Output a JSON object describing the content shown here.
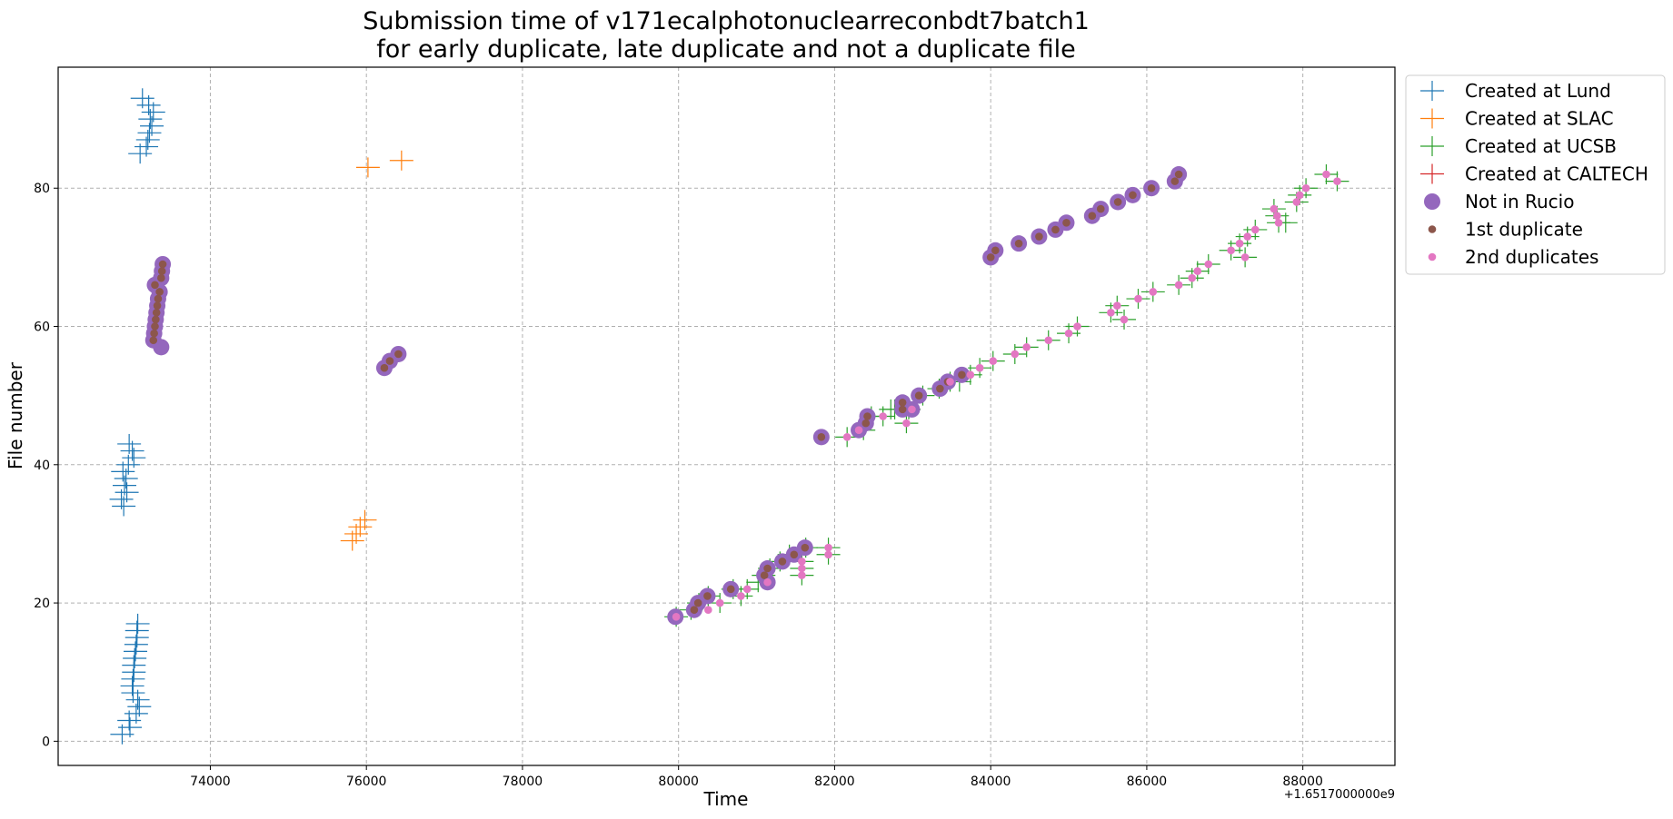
{
  "chart_data": {
    "type": "scatter",
    "title_line1": "Submission time of v171ecalphotonuclearreconbdt7batch1",
    "title_line2": "for early duplicate, late duplicate and not a duplicate file",
    "xlabel": "Time",
    "ylabel": "File number",
    "x_offset_label": "+1.6517000000e9",
    "xlim": [
      72050,
      89180
    ],
    "ylim": [
      -3.5,
      97.5
    ],
    "xticks": [
      74000,
      76000,
      78000,
      80000,
      82000,
      84000,
      86000,
      88000
    ],
    "yticks": [
      0,
      20,
      40,
      60,
      80
    ],
    "grid": true,
    "legend_position": "outside-right-top",
    "series": [
      {
        "name": "Created at Lund",
        "marker": "plus",
        "color": "#1f77b4",
        "points": [
          [
            73130,
            93
          ],
          [
            73210,
            92
          ],
          [
            73270,
            91
          ],
          [
            73230,
            90
          ],
          [
            73250,
            89
          ],
          [
            73220,
            88
          ],
          [
            73200,
            87
          ],
          [
            73180,
            86
          ],
          [
            73100,
            85
          ],
          [
            72960,
            43
          ],
          [
            73000,
            42
          ],
          [
            73020,
            41
          ],
          [
            72950,
            40
          ],
          [
            72880,
            39
          ],
          [
            72920,
            38
          ],
          [
            72900,
            37
          ],
          [
            72930,
            36
          ],
          [
            72860,
            35
          ],
          [
            72890,
            34
          ],
          [
            73070,
            17
          ],
          [
            73060,
            16
          ],
          [
            73060,
            15
          ],
          [
            73050,
            14
          ],
          [
            73040,
            13
          ],
          [
            73030,
            12
          ],
          [
            73020,
            11
          ],
          [
            73020,
            10
          ],
          [
            73010,
            9
          ],
          [
            73000,
            8
          ],
          [
            73010,
            7
          ],
          [
            73070,
            6
          ],
          [
            73090,
            5
          ],
          [
            73050,
            4
          ],
          [
            72960,
            3
          ],
          [
            72970,
            2
          ],
          [
            72870,
            1
          ]
        ]
      },
      {
        "name": "Created at SLAC",
        "marker": "plus",
        "color": "#ff7f0e",
        "points": [
          [
            76020,
            83
          ],
          [
            76450,
            84
          ],
          [
            75820,
            29
          ],
          [
            75870,
            30
          ],
          [
            75920,
            31
          ],
          [
            75980,
            32
          ]
        ]
      },
      {
        "name": "Created at UCSB",
        "marker": "plus",
        "color": "#2ca02c",
        "points": [
          [
            79970,
            18
          ],
          [
            80160,
            19
          ],
          [
            80260,
            20
          ],
          [
            80380,
            21
          ],
          [
            80530,
            20
          ],
          [
            80700,
            22
          ],
          [
            80800,
            21
          ],
          [
            80880,
            22
          ],
          [
            81020,
            23
          ],
          [
            81090,
            24
          ],
          [
            81170,
            25
          ],
          [
            81300,
            26
          ],
          [
            81420,
            27
          ],
          [
            81580,
            24
          ],
          [
            81580,
            25
          ],
          [
            81580,
            26
          ],
          [
            81630,
            28
          ],
          [
            81920,
            27
          ],
          [
            81920,
            28
          ],
          [
            82160,
            44
          ],
          [
            82370,
            45
          ],
          [
            82470,
            47
          ],
          [
            82620,
            47
          ],
          [
            82720,
            48
          ],
          [
            82770,
            48
          ],
          [
            82920,
            46
          ],
          [
            82950,
            48
          ],
          [
            83130,
            50
          ],
          [
            83340,
            51
          ],
          [
            83480,
            52
          ],
          [
            83600,
            52
          ],
          [
            83740,
            53
          ],
          [
            83860,
            54
          ],
          [
            84030,
            55
          ],
          [
            84310,
            56
          ],
          [
            84460,
            57
          ],
          [
            84740,
            58
          ],
          [
            85000,
            59
          ],
          [
            85110,
            60
          ],
          [
            85540,
            62
          ],
          [
            85620,
            63
          ],
          [
            85710,
            61
          ],
          [
            85890,
            64
          ],
          [
            86080,
            65
          ],
          [
            86410,
            66
          ],
          [
            86580,
            67
          ],
          [
            86650,
            68
          ],
          [
            86790,
            69
          ],
          [
            87080,
            71
          ],
          [
            87190,
            72
          ],
          [
            87260,
            70
          ],
          [
            87290,
            73
          ],
          [
            87390,
            74
          ],
          [
            87630,
            77
          ],
          [
            87670,
            76
          ],
          [
            87690,
            75
          ],
          [
            87780,
            75
          ],
          [
            87920,
            78
          ],
          [
            87960,
            79
          ],
          [
            88040,
            80
          ],
          [
            88300,
            82
          ],
          [
            88440,
            81
          ]
        ]
      },
      {
        "name": "Created at CALTECH",
        "marker": "plus",
        "color": "#d62728",
        "points": []
      },
      {
        "name": "Not in Rucio",
        "marker": "circle-large",
        "color": "#9467bd",
        "points": [
          [
            73290,
            66
          ],
          [
            73390,
            69
          ],
          [
            73380,
            68
          ],
          [
            73370,
            67
          ],
          [
            73350,
            65
          ],
          [
            73330,
            64
          ],
          [
            73320,
            63
          ],
          [
            73310,
            62
          ],
          [
            73300,
            61
          ],
          [
            73290,
            60
          ],
          [
            73280,
            59
          ],
          [
            73270,
            58
          ],
          [
            73370,
            57
          ],
          [
            76230,
            54
          ],
          [
            76300,
            55
          ],
          [
            76410,
            56
          ],
          [
            79960,
            18
          ],
          [
            80200,
            19
          ],
          [
            80250,
            20
          ],
          [
            80370,
            21
          ],
          [
            80670,
            22
          ],
          [
            81140,
            25
          ],
          [
            81100,
            24
          ],
          [
            81140,
            23
          ],
          [
            81330,
            26
          ],
          [
            81480,
            27
          ],
          [
            81620,
            28
          ],
          [
            81830,
            44
          ],
          [
            82310,
            45
          ],
          [
            82420,
            47
          ],
          [
            82400,
            46
          ],
          [
            82870,
            48
          ],
          [
            82870,
            49
          ],
          [
            82990,
            48
          ],
          [
            83080,
            50
          ],
          [
            83350,
            51
          ],
          [
            83450,
            52
          ],
          [
            83630,
            53
          ],
          [
            84000,
            70
          ],
          [
            84060,
            71
          ],
          [
            84360,
            72
          ],
          [
            84620,
            73
          ],
          [
            84830,
            74
          ],
          [
            84970,
            75
          ],
          [
            85300,
            76
          ],
          [
            85410,
            77
          ],
          [
            85630,
            78
          ],
          [
            85820,
            79
          ],
          [
            86060,
            80
          ],
          [
            86360,
            81
          ],
          [
            86410,
            82
          ]
        ]
      },
      {
        "name": "1st duplicate",
        "marker": "circle-small",
        "color": "#8c564b",
        "points": [
          [
            73290,
            66
          ],
          [
            73390,
            69
          ],
          [
            73380,
            68
          ],
          [
            73370,
            67
          ],
          [
            73350,
            65
          ],
          [
            73330,
            64
          ],
          [
            73320,
            63
          ],
          [
            73310,
            62
          ],
          [
            73300,
            61
          ],
          [
            73290,
            60
          ],
          [
            73280,
            59
          ],
          [
            73270,
            58
          ],
          [
            76230,
            54
          ],
          [
            76300,
            55
          ],
          [
            76410,
            56
          ],
          [
            80200,
            19
          ],
          [
            80250,
            20
          ],
          [
            80370,
            21
          ],
          [
            80670,
            22
          ],
          [
            81140,
            25
          ],
          [
            81100,
            24
          ],
          [
            81330,
            26
          ],
          [
            81480,
            27
          ],
          [
            81620,
            28
          ],
          [
            81830,
            44
          ],
          [
            82420,
            47
          ],
          [
            82400,
            46
          ],
          [
            82870,
            48
          ],
          [
            82870,
            49
          ],
          [
            83080,
            50
          ],
          [
            83350,
            51
          ],
          [
            83450,
            52
          ],
          [
            83630,
            53
          ],
          [
            84000,
            70
          ],
          [
            84060,
            71
          ],
          [
            84360,
            72
          ],
          [
            84620,
            73
          ],
          [
            84830,
            74
          ],
          [
            84970,
            75
          ],
          [
            85300,
            76
          ],
          [
            85410,
            77
          ],
          [
            85630,
            78
          ],
          [
            85820,
            79
          ],
          [
            86060,
            80
          ],
          [
            86360,
            81
          ],
          [
            86410,
            82
          ]
        ]
      },
      {
        "name": "2nd duplicates",
        "marker": "circle-small",
        "color": "#e377c2",
        "points": [
          [
            79970,
            18
          ],
          [
            80380,
            19
          ],
          [
            80530,
            20
          ],
          [
            80880,
            22
          ],
          [
            80800,
            21
          ],
          [
            81140,
            23
          ],
          [
            81580,
            24
          ],
          [
            81580,
            25
          ],
          [
            81580,
            26
          ],
          [
            81920,
            27
          ],
          [
            81920,
            28
          ],
          [
            82160,
            44
          ],
          [
            82310,
            45
          ],
          [
            82620,
            47
          ],
          [
            82920,
            46
          ],
          [
            82990,
            48
          ],
          [
            83480,
            52
          ],
          [
            83740,
            53
          ],
          [
            83860,
            54
          ],
          [
            84030,
            55
          ],
          [
            84310,
            56
          ],
          [
            84460,
            57
          ],
          [
            84740,
            58
          ],
          [
            85000,
            59
          ],
          [
            85110,
            60
          ],
          [
            85540,
            62
          ],
          [
            85620,
            63
          ],
          [
            85710,
            61
          ],
          [
            85890,
            64
          ],
          [
            86080,
            65
          ],
          [
            86410,
            66
          ],
          [
            86580,
            67
          ],
          [
            86650,
            68
          ],
          [
            86790,
            69
          ],
          [
            87080,
            71
          ],
          [
            87190,
            72
          ],
          [
            87260,
            70
          ],
          [
            87290,
            73
          ],
          [
            87390,
            74
          ],
          [
            87630,
            77
          ],
          [
            87670,
            76
          ],
          [
            87690,
            75
          ],
          [
            87920,
            78
          ],
          [
            87960,
            79
          ],
          [
            88040,
            80
          ],
          [
            88300,
            82
          ],
          [
            88440,
            81
          ]
        ]
      }
    ]
  }
}
